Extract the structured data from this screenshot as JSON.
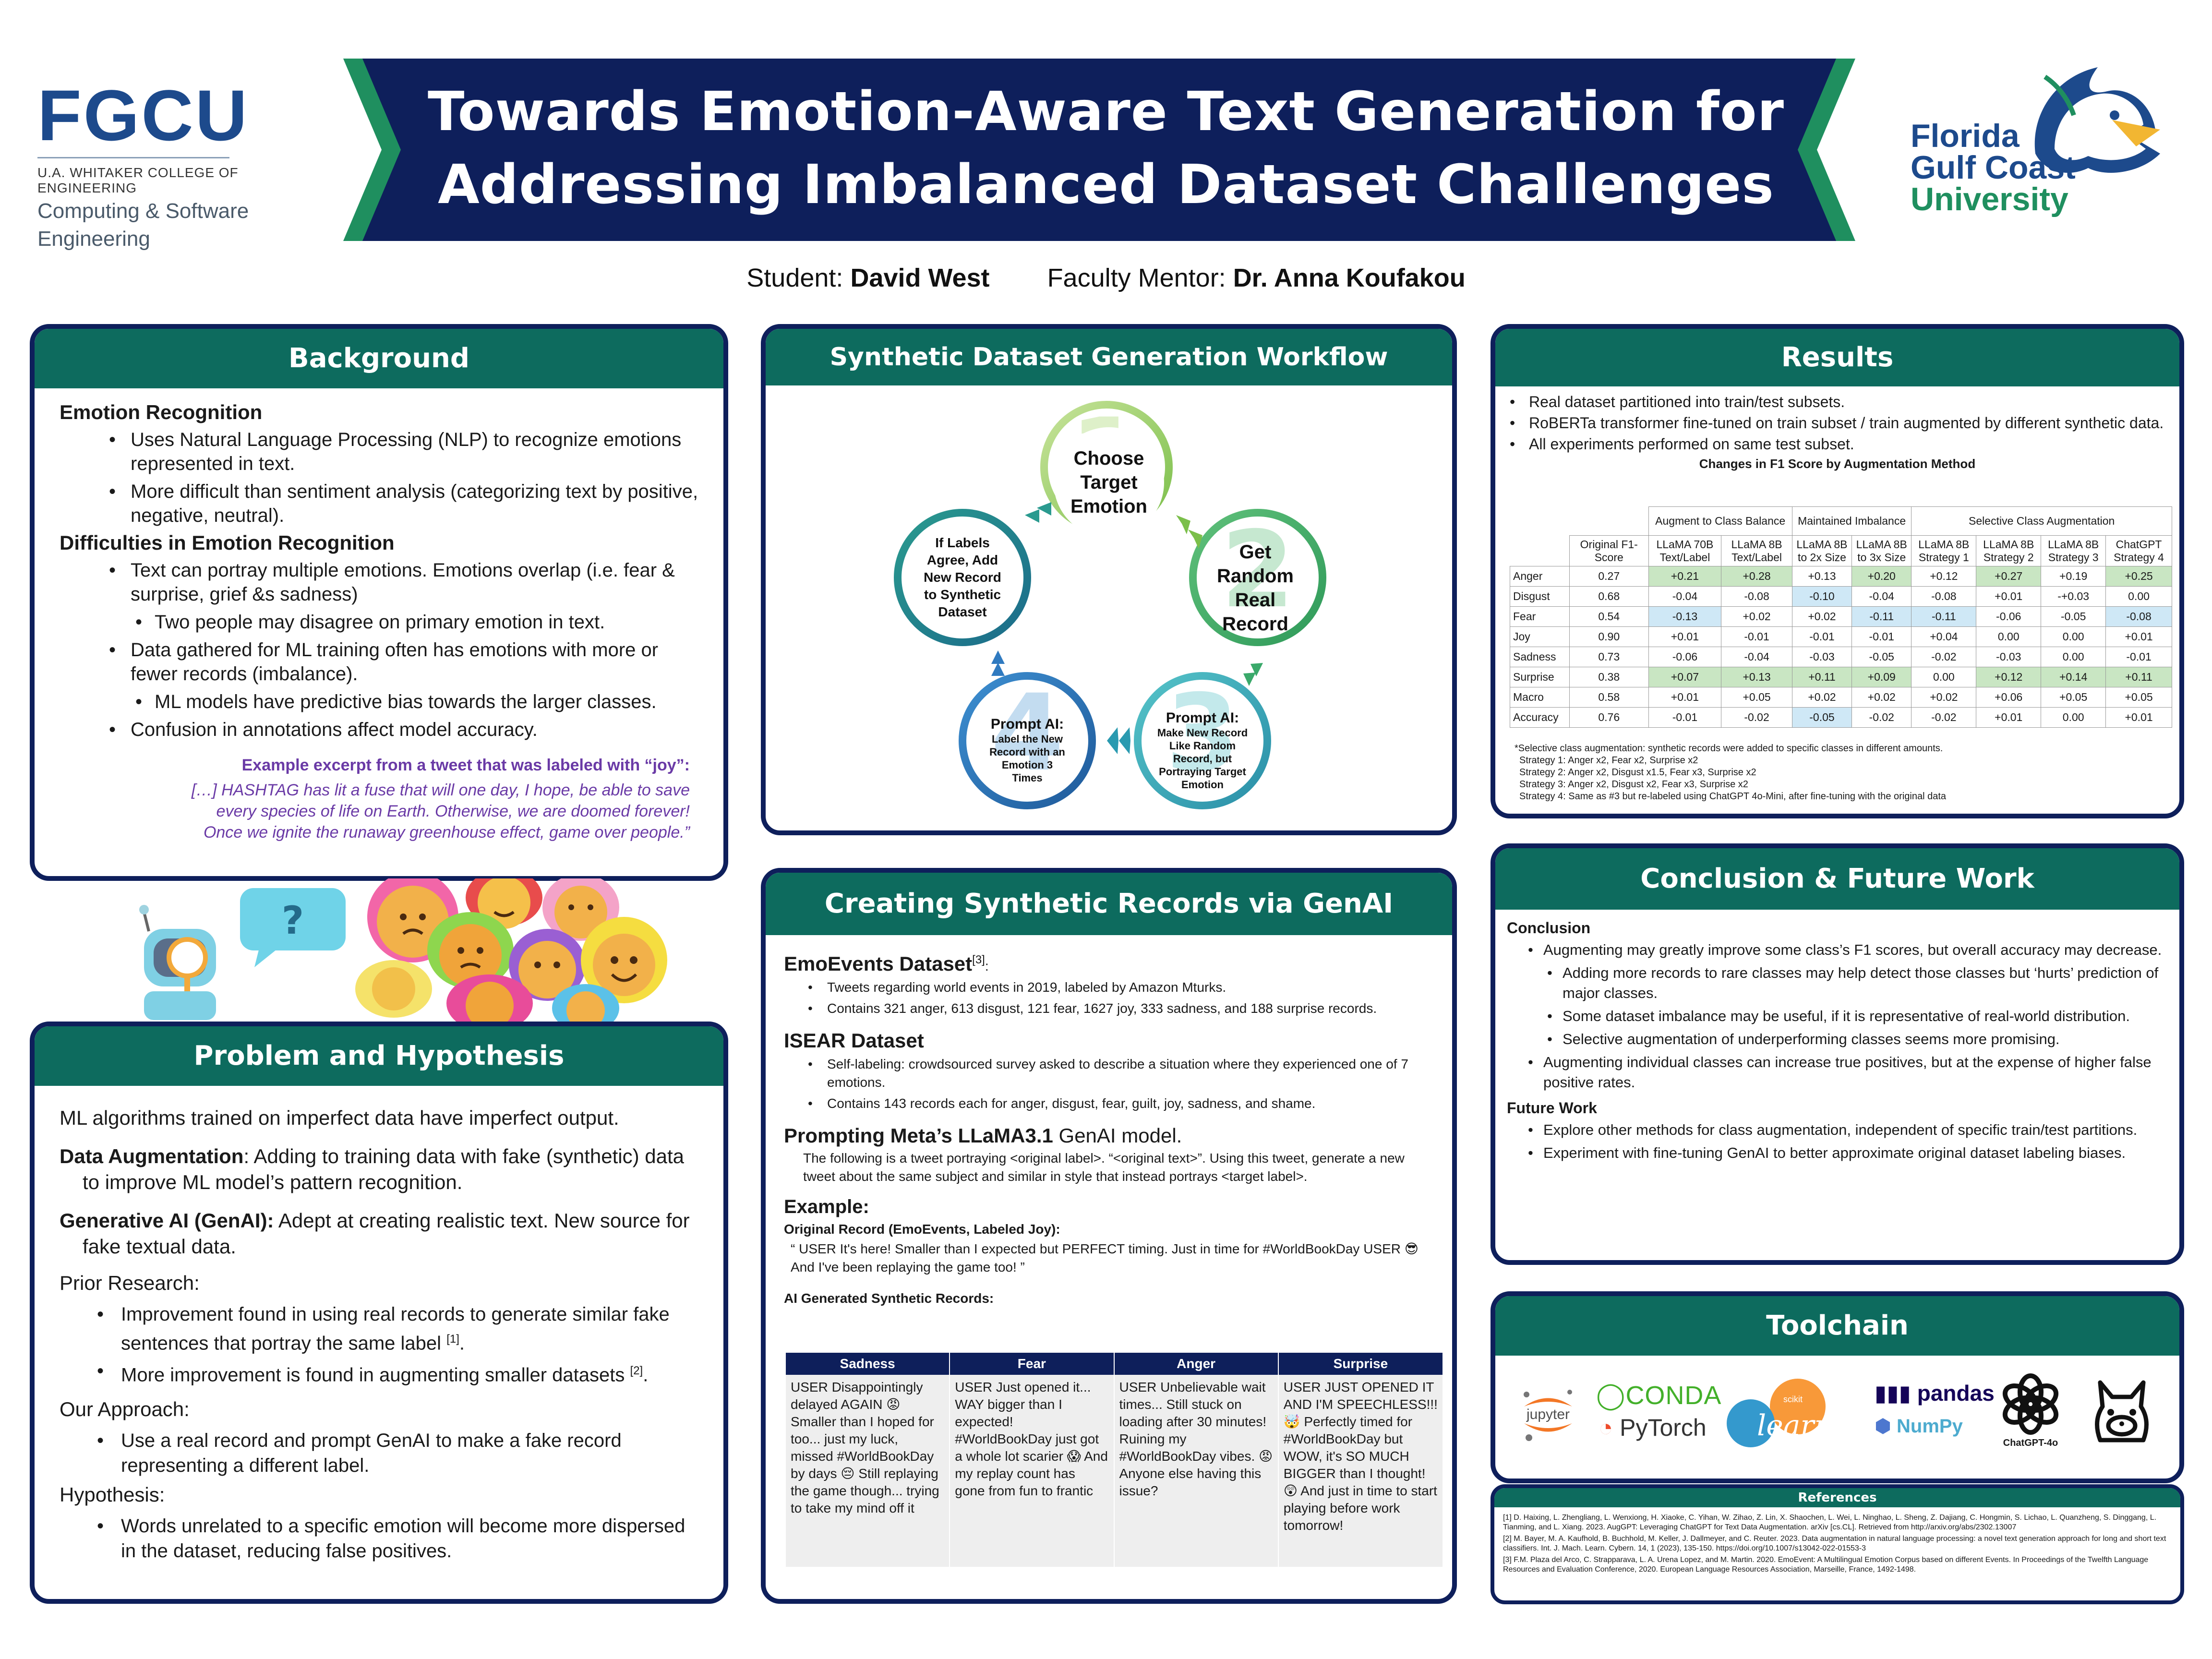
{
  "header": {
    "title_line1": "Towards Emotion-Aware Text Generation for",
    "title_line2": "Addressing Imbalanced Dataset Challenges",
    "student_label": "Student: ",
    "student_name": "David West",
    "mentor_label": "Faculty Mentor: ",
    "mentor_name": "Dr. Anna Koufakou",
    "left_logo": {
      "big": "FGCU",
      "college": "U.A. WHITAKER COLLEGE OF ENGINEERING",
      "dept1": "Computing & Software",
      "dept2": "Engineering"
    },
    "right_logo": {
      "line1": "Florida",
      "line2": "Gulf Coast",
      "line3": "University"
    },
    "colors": {
      "navy": "#0e1f5b",
      "teal": "#0d6b5e",
      "green": "#1f8f5f"
    }
  },
  "background": {
    "title": "Background",
    "h1": "Emotion Recognition",
    "b1": "Uses Natural Language Processing (NLP) to recognize emotions represented in text.",
    "b2": "More difficult than sentiment analysis (categorizing text by positive, negative, neutral).",
    "h2": "Difficulties in Emotion Recognition",
    "b3": "Text can portray multiple emotions. Emotions overlap (i.e. fear & surprise, grief &s sadness)",
    "b3a": "Two people may disagree on primary emotion in text.",
    "b4": "Data gathered for ML training often has emotions with more or fewer records (imbalance).",
    "b4a": "ML models have predictive bias towards the larger classes.",
    "b5": "Confusion in annotations affect model accuracy.",
    "quote_head": "Example excerpt from a tweet that was labeled with “joy”:",
    "quote1": "[…] HASHTAG has lit a fuse that will one day,  I hope, be able to save",
    "quote2": "every species of life on Earth. Otherwise, we are doomed forever!",
    "quote3": "Once we ignite the runaway greenhouse effect, game over people.”"
  },
  "problem": {
    "title": "Problem and Hypothesis",
    "p1": "ML algorithms trained on imperfect data have imperfect output.",
    "p2_bold": "Data Augmentation",
    "p2": ": Adding to training data with fake (synthetic) data",
    "p2b": "to improve ML model’s pattern recognition.",
    "p3_bold": "Generative AI (GenAI):",
    "p3": " Adept at creating realistic text. New source for",
    "p3b": "fake textual data.",
    "prior": "Prior Research:",
    "prior_b1": "Improvement found in using real records to generate similar fake sentences that portray the same label",
    "prior_b1_ref": "[1]",
    "prior_b2": "More improvement is found in augmenting smaller datasets",
    "prior_b2_ref": "[2]",
    "approach": "Our Approach:",
    "approach_b1": "Use a real record and prompt GenAI to make a fake record representing a different label.",
    "hyp": "Hypothesis:",
    "hyp_b1": "Words unrelated to a specific emotion will become more dispersed in the dataset, reducing false positives."
  },
  "workflow": {
    "title": "Synthetic Dataset Generation Workflow",
    "step1": "Choose Target Emotion",
    "step2": "Get Random Real Record",
    "step3_head": "Prompt AI:",
    "step3": "Make New Record Like Random Record, but Portraying Target Emotion",
    "step4_head": "Prompt AI:",
    "step4": "Label the New Record with an Emotion 3 Times",
    "step5": "If Labels Agree, Add New Record to Synthetic Dataset",
    "num1": "1",
    "num2": "2",
    "num3": "3",
    "num4": "4"
  },
  "creating": {
    "title": "Creating Synthetic Records via GenAI",
    "emo_h": "EmoEvents Dataset",
    "emo_ref": "[3]",
    "emo_b1": "Tweets regarding world events in 2019, labeled by Amazon Mturks.",
    "emo_b2": "Contains 321 anger, 613 disgust, 121 fear, 1627 joy, 333 sadness, and 188 surprise records.",
    "isear_h": "ISEAR Dataset",
    "isear_b1": "Self-labeling: crowdsourced survey asked to describe a situation where they experienced one of 7 emotions.",
    "isear_b2": "Contains 143 records each for anger, disgust, fear, guilt, joy, sadness, and shame.",
    "prompt_h_bold": "Prompting Meta’s LLaMA3.1",
    "prompt_h": " GenAI model.",
    "prompt": "The following is a tweet portraying <original label>. “<original text>”. Using this tweet, generate a new tweet about the same subject and similar in style that instead portrays <target label>.",
    "example_h": "Example:",
    "orig_h": "Original Record (EmoEvents, Labeled Joy):",
    "orig": "“ USER It's here!  Smaller than I expected but PERFECT timing. Just in time for #WorldBookDay USER 😎 And I've been replaying the game too! ”",
    "gen_h": "AI Generated Synthetic Records:",
    "table_headers": [
      "Sadness",
      "Fear",
      "Anger",
      "Surprise"
    ],
    "table_cells": [
      "USER Disappointingly delayed AGAIN 😡 Smaller than I hoped for too... just my luck, missed #WorldBookDay by days 😔 Still replaying the game though... trying to take my mind off it",
      "USER Just opened it... WAY bigger than I expected! #WorldBookDay just got a whole lot scarier 😱 And my replay count has gone from fun to frantic",
      "USER Unbelievable wait times... Still stuck on loading after 30 minutes! Ruining my #WorldBookDay vibes. 😡 Anyone else having this issue?",
      "USER JUST OPENED IT AND I'M SPEECHLESS!!! 🤯 Perfectly timed for #WorldBookDay but WOW, it's SO MUCH BIGGER than I thought! 😲 And just in time to start playing before work tomorrow!"
    ]
  },
  "results": {
    "title": "Results",
    "b1": "Real dataset partitioned into train/test subsets.",
    "b2": "RoBERTa transformer fine-tuned on train subset / train augmented by different synthetic data.",
    "b3": "All experiments performed on same test subset.",
    "table_title": "Changes in F1 Score by Augmentation Method",
    "group1": "Augment to Class Balance",
    "group2": "Maintained Imbalance",
    "group3": "Selective Class Augmentation",
    "col_orig": "Original F1-Score",
    "cols": [
      "LLaMA 70B Text/Label",
      "LLaMA 8B Text/Label",
      "LLaMA 8B to 2x Size",
      "LLaMA 8B to 3x Size",
      "LLaMA 8B Strategy 1",
      "LLaMA 8B Strategy 2",
      "LLaMA 8B Strategy 3",
      "ChatGPT Strategy 4"
    ],
    "rows": [
      {
        "label": "Anger",
        "orig": "0.27",
        "vals": [
          "+0.21",
          "+0.28",
          "+0.13",
          "+0.20",
          "+0.12",
          "+0.27",
          "+0.19",
          "+0.25"
        ],
        "hl": [
          "g",
          "g",
          "",
          "g",
          "",
          "g",
          "",
          "g"
        ]
      },
      {
        "label": "Disgust",
        "orig": "0.68",
        "vals": [
          "-0.04",
          "-0.08",
          "-0.10",
          "-0.04",
          "-0.08",
          "+0.01",
          "-+0.03",
          "0.00"
        ],
        "hl": [
          "",
          "",
          "b",
          "",
          "",
          "",
          "",
          ""
        ]
      },
      {
        "label": "Fear",
        "orig": "0.54",
        "vals": [
          "-0.13",
          "+0.02",
          "+0.02",
          "-0.11",
          "-0.11",
          "-0.06",
          "-0.05",
          "-0.08"
        ],
        "hl": [
          "b",
          "",
          "",
          "b",
          "b",
          "",
          "",
          "b"
        ]
      },
      {
        "label": "Joy",
        "orig": "0.90",
        "vals": [
          "+0.01",
          "-0.01",
          "-0.01",
          "-0.01",
          "+0.04",
          "0.00",
          "0.00",
          "+0.01"
        ],
        "hl": [
          "",
          "",
          "",
          "",
          "",
          "",
          "",
          ""
        ]
      },
      {
        "label": "Sadness",
        "orig": "0.73",
        "vals": [
          "-0.06",
          "-0.04",
          "-0.03",
          "-0.05",
          "-0.02",
          "-0.03",
          "0.00",
          "-0.01"
        ],
        "hl": [
          "",
          "",
          "",
          "",
          "",
          "",
          "",
          ""
        ]
      },
      {
        "label": "Surprise",
        "orig": "0.38",
        "vals": [
          "+0.07",
          "+0.13",
          "+0.11",
          "+0.09",
          "0.00",
          "+0.12",
          "+0.14",
          "+0.11"
        ],
        "hl": [
          "g",
          "g",
          "g",
          "g",
          "",
          "g",
          "g",
          "g"
        ]
      },
      {
        "label": "Macro",
        "orig": "0.58",
        "vals": [
          "+0.01",
          "+0.05",
          "+0.02",
          "+0.02",
          "+0.02",
          "+0.06",
          "+0.05",
          "+0.05"
        ],
        "hl": [
          "",
          "",
          "",
          "",
          "",
          "",
          "",
          ""
        ]
      },
      {
        "label": "Accuracy",
        "orig": "0.76",
        "vals": [
          "-0.01",
          "-0.02",
          "-0.05",
          "-0.02",
          "-0.02",
          "+0.01",
          "0.00",
          "+0.01"
        ],
        "hl": [
          "",
          "",
          "b",
          "",
          "",
          "",
          "",
          ""
        ]
      }
    ],
    "fn1": "*Selective class augmentation: synthetic records were added to specific classes in different amounts.",
    "fn2": "Strategy 1: Anger x2, Fear x2, Surprise x2",
    "fn3": "Strategy 2: Anger x2, Disgust x1.5, Fear x3, Surprise x2",
    "fn4": "Strategy 3: Anger x2, Disgust x2, Fear x3, Surprise x2",
    "fn5": "Strategy 4: Same as #3 but re-labeled using ChatGPT 4o-Mini, after fine-tuning with the original data"
  },
  "conclusion": {
    "title": "Conclusion & Future Work",
    "h1": "Conclusion",
    "b1": "Augmenting may greatly improve some class’s F1 scores, but overall accuracy may decrease.",
    "b1a": "Adding more records to rare classes may help detect those classes but ‘hurts’ prediction of major classes.",
    "b1b": "Some dataset imbalance may be useful, if it is representative of real-world distribution.",
    "b1c": "Selective augmentation of underperforming classes seems more promising.",
    "b2": "Augmenting individual classes can increase true positives, but at the expense of higher false positive rates.",
    "h2": "Future Work",
    "f1": "Explore other methods for class augmentation, independent of specific train/test partitions.",
    "f2": "Experiment with fine-tuning GenAI to better approximate original dataset labeling biases."
  },
  "toolchain": {
    "title": "Toolchain",
    "jupyter": "jupyter",
    "conda": "CONDA",
    "pytorch": "PyTorch",
    "sklearn1": "scikit",
    "sklearn2": "learn",
    "pandas": "pandas",
    "numpy": "NumPy",
    "chatgpt": "ChatGPT-4o"
  },
  "references": {
    "title": "References",
    "r1": "[1] D. Haixing, L. Zhengliang, L. Wenxiong, H. Xiaoke, C. Yihan, W. Zihao, Z. Lin, X. Shaochen, L. Wei, L. Ninghao, L. Sheng, Z. Dajiang, C. Hongmin, S. Lichao, L. Quanzheng, S. Dinggang, L. Tianming, and L. Xiang. 2023. AugGPT: Leveraging ChatGPT for Text Data Augmentation. arXiv [cs.CL]. Retrieved from http://arxiv.org/abs/2302.13007",
    "r2": "[2] M. Bayer, M. A. Kaufhold, B. Buchhold, M. Keller, J. Dallmeyer, and C. Reuter. 2023. Data augmentation in natural language processing: a novel text generation approach for long and short text classifiers. Int. J. Mach. Learn. Cybern. 14, 1 (2023), 135-150. https://doi.org/10.1007/s13042-022-01553-3",
    "r3": "[3] F.M. Plaza del Arco, C. Strapparava, L. A. Urena Lopez, and M. Martin. 2020. EmoEvent: A Multilingual Emotion Corpus based on different Events. In Proceedings of the Twelfth Language Resources and Evaluation Conference, 2020. European Language Resources Association, Marseille, France, 1492-1498."
  },
  "illustration": {
    "question_mark": "?"
  }
}
